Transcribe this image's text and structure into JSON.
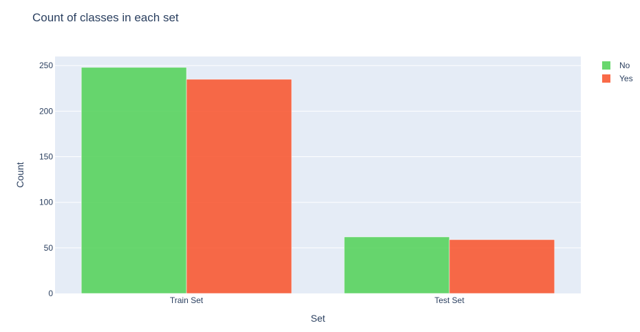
{
  "chart_data": {
    "type": "bar",
    "title": "Count of classes in each set",
    "xlabel": "Set",
    "ylabel": "Count",
    "categories": [
      "Train Set",
      "Test Set"
    ],
    "series": [
      {
        "name": "No",
        "values": [
          248,
          62
        ],
        "color": "#54d15a"
      },
      {
        "name": "Yes",
        "values": [
          235,
          59
        ],
        "color": "#f8552f"
      }
    ],
    "ylim": [
      0,
      260
    ],
    "yticks": [
      0,
      50,
      100,
      150,
      200,
      250
    ],
    "grid": true,
    "legend_position": "top-right",
    "plot_bgcolor": "#e5ecf6"
  }
}
